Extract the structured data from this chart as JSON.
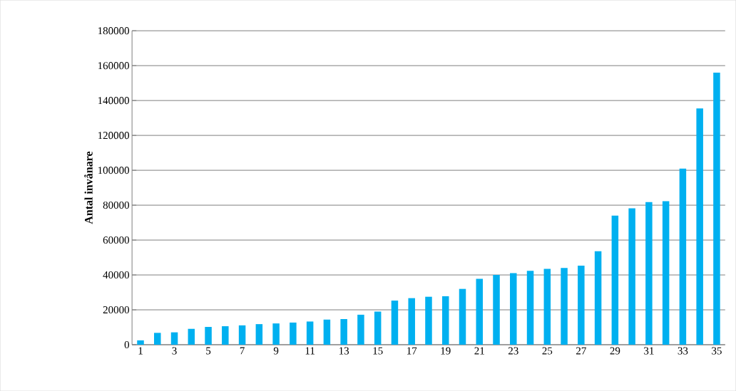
{
  "chart_data": {
    "type": "bar",
    "ylabel": "Antal invånare",
    "categories": [
      "1",
      null,
      "3",
      null,
      "5",
      null,
      "7",
      null,
      "9",
      null,
      "11",
      null,
      "13",
      null,
      "15",
      null,
      "17",
      null,
      "19",
      null,
      "21",
      null,
      "23",
      null,
      "25",
      null,
      "27",
      null,
      "29",
      null,
      "31",
      null,
      "33",
      null,
      "35"
    ],
    "values": [
      2500,
      6800,
      7100,
      9100,
      10200,
      10600,
      11100,
      11800,
      12200,
      12700,
      13300,
      14400,
      14700,
      17200,
      19000,
      25300,
      26700,
      27500,
      27800,
      32000,
      37800,
      40000,
      41000,
      42400,
      43500,
      44000,
      45300,
      53600,
      74000,
      78200,
      81800,
      82300,
      101000,
      135500,
      156000
    ],
    "color": "#00b0f0",
    "ylim": [
      0,
      180000
    ],
    "yticks": [
      0,
      20000,
      40000,
      60000,
      80000,
      100000,
      120000,
      140000,
      160000,
      180000
    ],
    "grid": "y"
  }
}
